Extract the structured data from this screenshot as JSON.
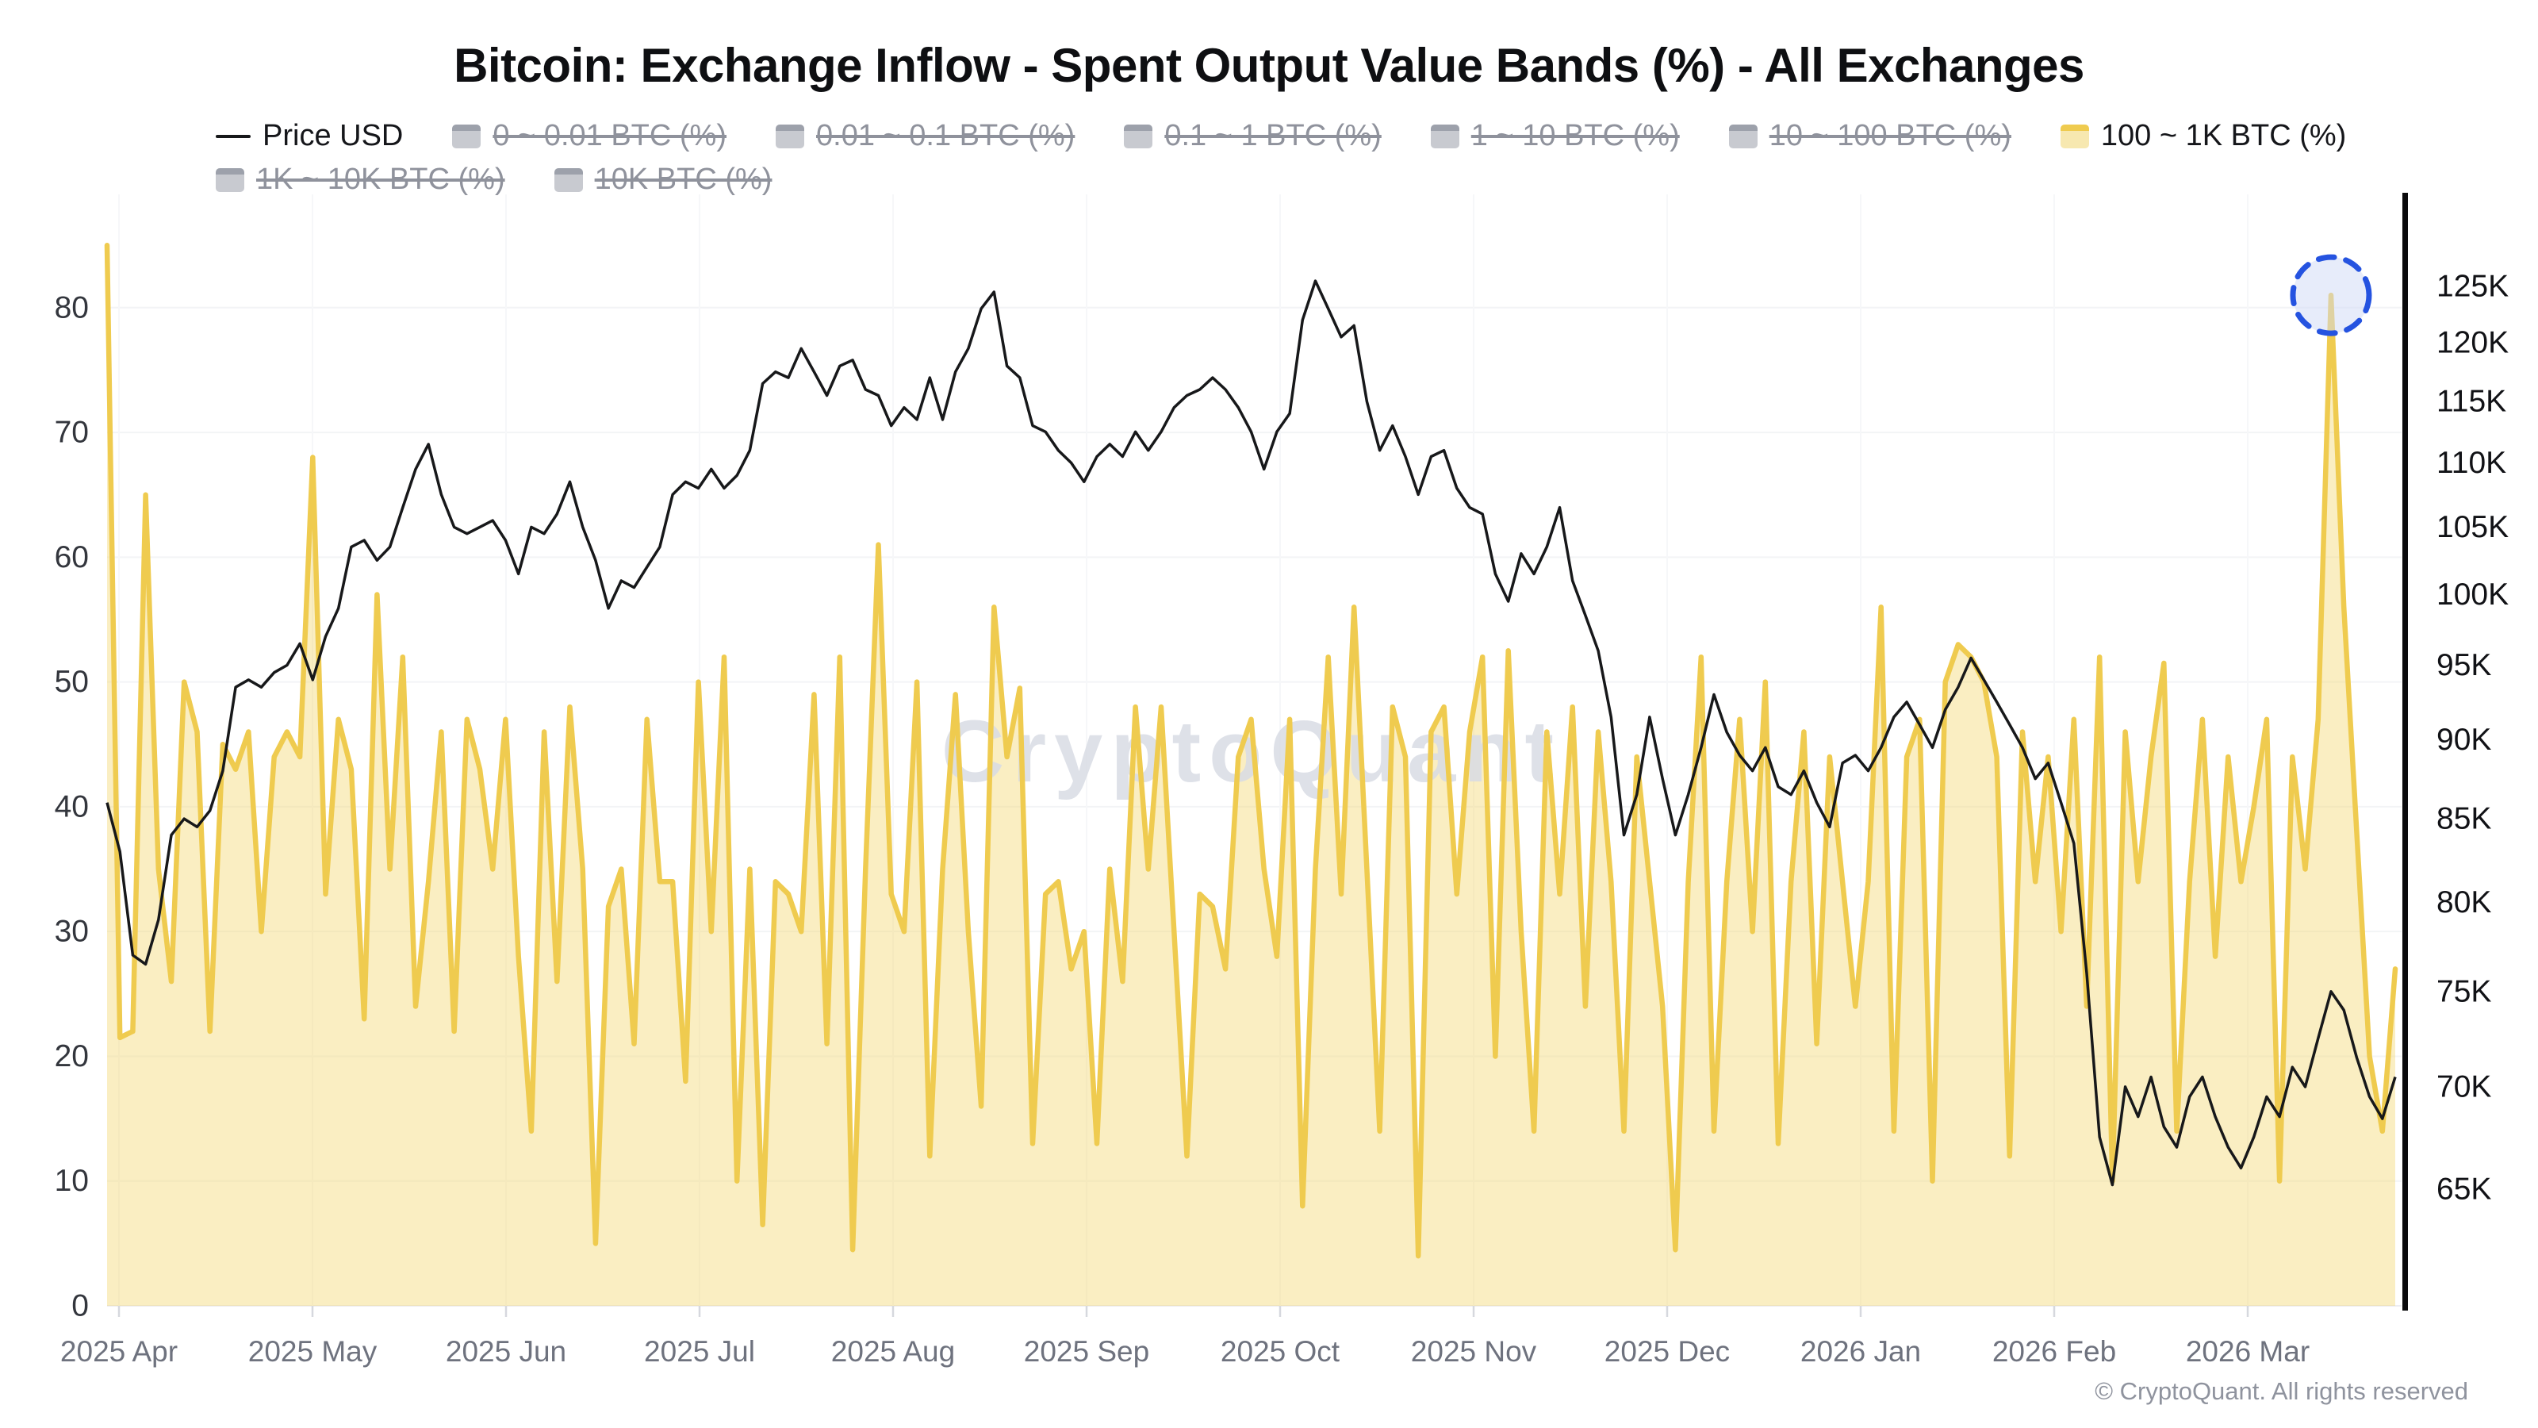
{
  "title": "Bitcoin: Exchange Inflow - Spent Output Value Bands (%) - All Exchanges",
  "watermark": "CryptoQuant",
  "copyright": "© CryptoQuant. All rights reserved",
  "colors": {
    "price_line": "#17181a",
    "band_line": "#efcb4f",
    "band_fill": "rgba(243,214,109,0.42)",
    "legend_active_text": "#15161a",
    "legend_disabled": "#8f929c",
    "annotation_blue": "#2553e0",
    "annotation_fill": "rgba(208,217,246,0.5)",
    "watermark_gray": "#d9dce5",
    "grid": "#f3f4f6",
    "baseline": "#ecedf1",
    "left_axis_text": "#33363d",
    "right_axis_text": "#111216",
    "x_axis_text": "#6e727e",
    "tick_mark": "#d6d8de",
    "right_axis_bar": "#0a0a0c"
  },
  "legend": {
    "rows": [
      [
        {
          "label": "Price USD",
          "marker": "line",
          "active": true
        },
        {
          "label": "0 ~ 0.01 BTC (%)",
          "marker": "area",
          "active": false
        },
        {
          "label": "0.01 ~ 0.1 BTC (%)",
          "marker": "area",
          "active": false
        },
        {
          "label": "0.1 ~ 1 BTC (%)",
          "marker": "area",
          "active": false
        },
        {
          "label": "1 ~ 10 BTC (%)",
          "marker": "area",
          "active": false
        },
        {
          "label": "10 ~ 100 BTC (%)",
          "marker": "area",
          "active": false
        },
        {
          "label": "100 ~ 1K BTC (%)",
          "marker": "area",
          "active": true
        }
      ],
      [
        {
          "label": "1K ~ 10K BTC (%)",
          "marker": "area",
          "active": false
        },
        {
          "label": "10K BTC (%)",
          "marker": "area",
          "active": false
        }
      ]
    ]
  },
  "chart_data": {
    "type": "area",
    "title": "Bitcoin: Exchange Inflow - Spent Output Value Bands (%) - All Exchanges",
    "x_start": "2025-04-01",
    "sample_interval_days": 2,
    "x_tick_labels": [
      "2025 Apr",
      "2025 May",
      "2025 Jun",
      "2025 Jul",
      "2025 Aug",
      "2025 Sep",
      "2025 Oct",
      "2025 Nov",
      "2025 Dec",
      "2026 Jan",
      "2026 Feb",
      "2026 Mar"
    ],
    "left_axis": {
      "title": "100 ~ 1K BTC (%)",
      "ticks": [
        0,
        10,
        20,
        30,
        40,
        50,
        60,
        70,
        80
      ],
      "range": [
        0,
        86
      ]
    },
    "right_axis": {
      "title": "Price USD",
      "scale": "log",
      "ticks_k": [
        125,
        120,
        115,
        110,
        105,
        100,
        95,
        90,
        85,
        80,
        75,
        70,
        65
      ],
      "unit": "K"
    },
    "series": [
      {
        "name": "100 ~ 1K BTC (%)",
        "type": "area",
        "axis": "left",
        "unit": "%",
        "values": [
          85,
          21.5,
          22,
          65,
          35,
          26,
          50,
          46,
          22,
          45,
          43,
          46,
          30,
          44,
          46,
          44,
          68,
          33,
          47,
          43,
          23,
          57,
          35,
          52,
          24,
          34,
          46,
          22,
          47,
          43,
          35,
          47,
          28,
          14,
          46,
          26,
          48,
          35,
          5,
          32,
          35,
          21,
          47,
          34,
          34,
          18,
          50,
          30,
          52,
          10,
          35,
          6.5,
          34,
          33,
          30,
          49,
          21,
          52,
          4.5,
          35,
          61,
          33,
          30,
          50,
          12,
          35,
          49,
          30,
          16,
          56,
          44,
          49.5,
          13,
          33,
          34,
          27,
          30,
          13,
          35,
          26,
          48,
          35,
          48,
          30,
          12,
          33,
          32,
          27,
          44,
          47,
          35,
          28,
          47,
          8,
          35,
          52,
          33,
          56,
          35,
          14,
          48,
          44,
          4,
          46,
          48,
          33,
          46,
          52,
          20,
          52.5,
          30,
          14,
          46,
          33,
          48,
          24,
          46,
          34,
          14,
          44,
          34,
          24,
          4.5,
          34,
          52,
          14,
          34,
          47,
          30,
          50,
          13,
          34,
          46,
          21,
          44,
          34,
          24,
          34,
          56,
          14,
          44,
          47,
          10,
          50,
          53,
          52,
          50,
          44,
          12,
          46,
          34,
          44,
          30,
          47,
          24,
          52,
          10,
          46,
          34,
          44,
          51.5,
          14,
          34,
          47,
          28,
          44,
          34,
          40,
          47,
          10,
          44,
          35,
          47,
          81,
          56,
          38,
          20,
          14,
          27
        ]
      },
      {
        "name": "Price USD",
        "type": "line",
        "axis": "right",
        "unit": "USD thousands",
        "values": [
          86,
          83,
          77,
          76.5,
          79,
          84,
          85,
          84.5,
          85.5,
          88,
          93.5,
          94,
          93.5,
          94.5,
          95,
          96.5,
          94,
          97,
          99,
          103.5,
          104,
          102.5,
          103.5,
          106.5,
          109.5,
          111.5,
          107.5,
          105,
          104.5,
          105,
          105.5,
          104,
          101.5,
          105,
          104.5,
          106,
          108.5,
          105,
          102.5,
          99,
          101,
          100.5,
          102,
          103.5,
          107.5,
          108.5,
          108,
          109.5,
          108,
          109,
          111,
          116.5,
          117.5,
          117,
          119.5,
          117.5,
          115.5,
          118,
          118.5,
          116,
          115.5,
          113,
          114.5,
          113.5,
          117,
          113.5,
          117.5,
          119.5,
          123,
          124.5,
          118,
          117,
          113,
          112.5,
          111,
          110,
          108.5,
          110.5,
          111.5,
          110.5,
          112.5,
          111,
          112.5,
          114.5,
          115.5,
          116,
          117,
          116,
          114.5,
          112.5,
          109.5,
          112.5,
          114,
          122,
          125.5,
          123,
          120.5,
          121.5,
          115,
          111,
          113,
          110.5,
          107.5,
          110.5,
          111,
          108,
          106.5,
          106,
          101.5,
          99.5,
          103,
          101.5,
          103.5,
          106.5,
          101,
          98.5,
          96,
          91.5,
          84,
          86.5,
          91.5,
          87.5,
          84,
          86.5,
          89.5,
          93,
          90.5,
          89,
          88,
          89.5,
          87,
          86.5,
          88,
          86,
          84.5,
          88.5,
          89,
          88,
          89.5,
          91.5,
          92.5,
          91,
          89.5,
          92,
          93.5,
          95.5,
          94,
          92.5,
          91,
          89.5,
          87.5,
          88.5,
          86,
          83.5,
          76,
          67.5,
          65.2,
          70,
          68.5,
          70.5,
          68,
          67,
          69.5,
          70.5,
          68.5,
          67,
          66,
          67.5,
          69.5,
          68.5,
          71,
          70,
          72.5,
          75,
          74,
          71.5,
          69.5,
          68.4,
          70.5
        ]
      }
    ],
    "highlight": {
      "series": "100 ~ 1K BTC (%)",
      "point_index": 173,
      "value": 81,
      "shape": "dashed-circle"
    }
  }
}
